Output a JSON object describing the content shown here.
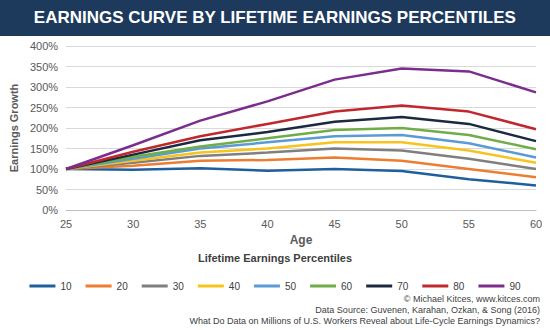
{
  "chart_data": {
    "type": "line",
    "title": "EARNINGS CURVE BY LIFETIME EARNINGS PERCENTILES",
    "x_label": "Age",
    "y_label": "Earnings Growth",
    "legend_title": "Lifetime Earnings Percentiles",
    "annotations": [
      "© Michael Kitces, www.kitces.com",
      "Data Source: Guvenen, Karahan, Ozkan, & Song (2016)",
      "What Do Data on Millions of U.S. Workers Reveal about Life-Cycle Earnings Dynamics?"
    ],
    "x": [
      25,
      30,
      35,
      40,
      45,
      50,
      55,
      60
    ],
    "xlim": [
      25,
      60
    ],
    "xticks": [
      25,
      30,
      35,
      40,
      45,
      50,
      55,
      60
    ],
    "ylim": [
      0,
      400
    ],
    "yticks": [
      {
        "value": 0,
        "label": "0%"
      },
      {
        "value": 50,
        "label": "50%"
      },
      {
        "value": 100,
        "label": "100%"
      },
      {
        "value": 150,
        "label": "150%"
      },
      {
        "value": 200,
        "label": "200%"
      },
      {
        "value": 250,
        "label": "250%"
      },
      {
        "value": 300,
        "label": "300%"
      },
      {
        "value": 350,
        "label": "350%"
      },
      {
        "value": 400,
        "label": "400%"
      }
    ],
    "grid": true,
    "legend": "bottom",
    "marker": "none",
    "series": [
      {
        "name": "10",
        "color": "#1f5f9e",
        "values": [
          100,
          98,
          102,
          96,
          100,
          95,
          75,
          60
        ]
      },
      {
        "name": "20",
        "color": "#ed7d31",
        "values": [
          100,
          108,
          120,
          122,
          128,
          120,
          100,
          80
        ]
      },
      {
        "name": "30",
        "color": "#7f7f7f",
        "values": [
          100,
          115,
          132,
          140,
          150,
          145,
          125,
          100
        ]
      },
      {
        "name": "40",
        "color": "#f7c31c",
        "values": [
          100,
          120,
          140,
          150,
          165,
          165,
          145,
          115
        ]
      },
      {
        "name": "50",
        "color": "#5b9bd5",
        "values": [
          100,
          125,
          150,
          165,
          180,
          183,
          163,
          128
        ]
      },
      {
        "name": "60",
        "color": "#70ad47",
        "values": [
          100,
          130,
          155,
          175,
          195,
          200,
          183,
          148
        ]
      },
      {
        "name": "70",
        "color": "#1b2a41",
        "values": [
          100,
          135,
          170,
          190,
          215,
          227,
          210,
          168
        ]
      },
      {
        "name": "80",
        "color": "#c0282d",
        "values": [
          100,
          142,
          180,
          210,
          240,
          255,
          240,
          197
        ]
      },
      {
        "name": "90",
        "color": "#7b2d8e",
        "values": [
          100,
          158,
          218,
          265,
          318,
          345,
          338,
          287
        ]
      }
    ]
  }
}
